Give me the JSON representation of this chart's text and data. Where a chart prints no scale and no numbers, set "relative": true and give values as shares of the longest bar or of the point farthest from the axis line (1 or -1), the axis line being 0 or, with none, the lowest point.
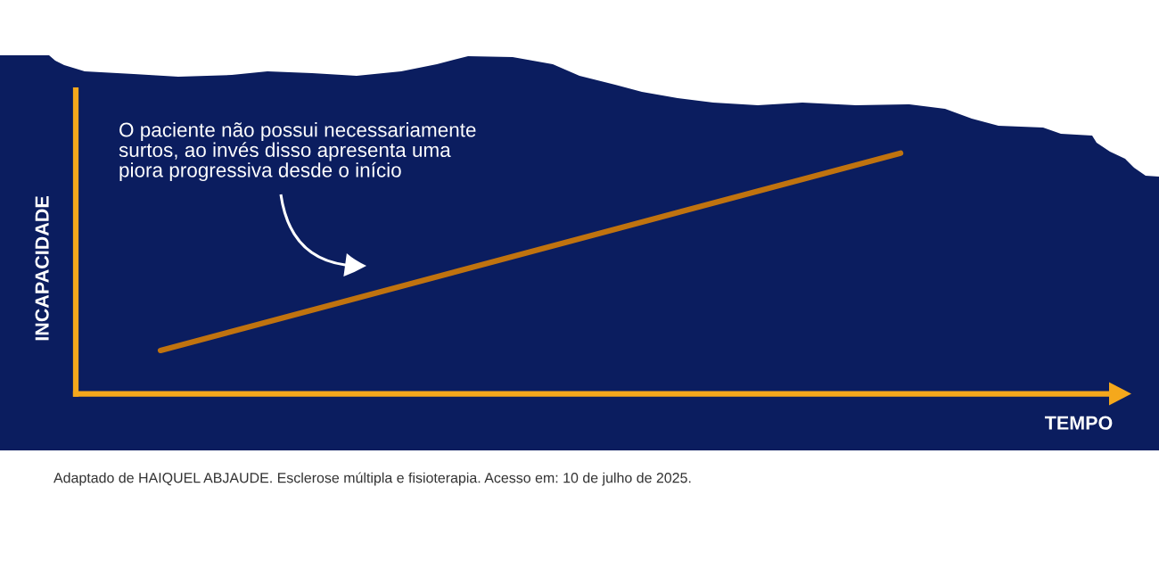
{
  "chart_data": {
    "type": "line",
    "relative": true,
    "categories": [
      null,
      null
    ],
    "values": [
      0.18,
      1
    ],
    "color": "#c0730f",
    "line_style": "solid",
    "xlabel": "TEMPO",
    "ylabel": "INCAPACIDADE",
    "annotations": [
      "O paciente não possui necessariamente\nsurtos, ao invés disso apresenta uma\npiora progressiva desde o início",
      "Adaptado de HAIQUEL ABJAUDE. Esclerose múltipla e fisioterapia. Acesso em: 10 de julho de 2025."
    ]
  }
}
